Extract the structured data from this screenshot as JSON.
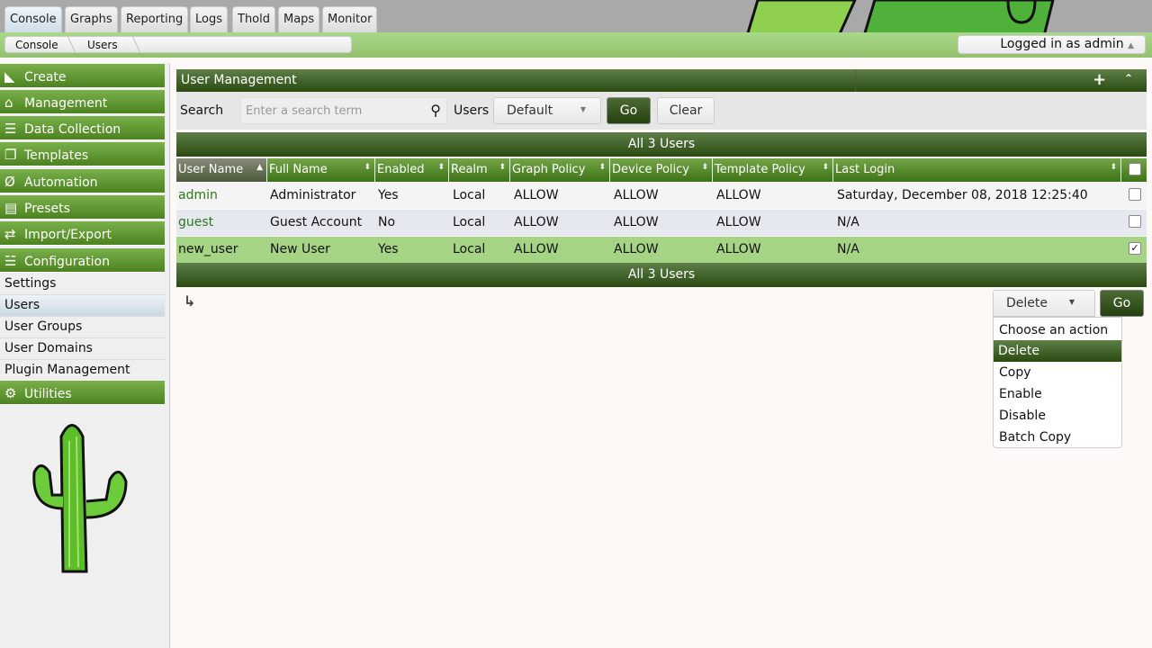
{
  "tabs": [
    "Console",
    "Graphs",
    "Reporting",
    "Logs",
    "Thold",
    "Maps",
    "Monitor"
  ],
  "breadcrumb": [
    "Console",
    "Users"
  ],
  "login_text": "Logged in as admin",
  "sidebar": {
    "menus": [
      {
        "label": "Create",
        "icon": "area-chart-icon"
      },
      {
        "label": "Management",
        "icon": "home-icon"
      },
      {
        "label": "Data Collection",
        "icon": "database-icon"
      },
      {
        "label": "Templates",
        "icon": "copy-icon"
      },
      {
        "label": "Automation",
        "icon": "automation-icon"
      },
      {
        "label": "Presets",
        "icon": "archive-icon"
      },
      {
        "label": "Import/Export",
        "icon": "exchange-icon"
      },
      {
        "label": "Configuration",
        "icon": "sliders-icon"
      }
    ],
    "config_items": [
      "Settings",
      "Users",
      "User Groups",
      "User Domains",
      "Plugin Management"
    ],
    "selected": "Users",
    "utilities": {
      "label": "Utilities",
      "icon": "cogs-icon"
    }
  },
  "panel": {
    "title": "User Management"
  },
  "filter": {
    "search_label": "Search",
    "search_placeholder": "Enter a search term",
    "users_label": "Users",
    "users_value": "Default",
    "go": "Go",
    "clear": "Clear"
  },
  "table": {
    "summary": "All 3 Users",
    "columns": [
      "User Name",
      "Full Name",
      "Enabled",
      "Realm",
      "Graph Policy",
      "Device Policy",
      "Template Policy",
      "Last Login"
    ],
    "rows": [
      {
        "user": "admin",
        "full": "Administrator",
        "enabled": "Yes",
        "realm": "Local",
        "graph": "ALLOW",
        "device": "ALLOW",
        "template": "ALLOW",
        "last": "Saturday, December 08, 2018 12:25:40",
        "checked": false
      },
      {
        "user": "guest",
        "full": "Guest Account",
        "enabled": "No",
        "realm": "Local",
        "graph": "ALLOW",
        "device": "ALLOW",
        "template": "ALLOW",
        "last": "N/A",
        "checked": false
      },
      {
        "user": "new_user",
        "full": "New User",
        "enabled": "Yes",
        "realm": "Local",
        "graph": "ALLOW",
        "device": "ALLOW",
        "template": "ALLOW",
        "last": "N/A",
        "checked": true
      }
    ]
  },
  "actions": {
    "selected": "Delete",
    "go": "Go",
    "options": [
      "Choose an action",
      "Delete",
      "Copy",
      "Enable",
      "Disable",
      "Batch Copy"
    ]
  },
  "colors": {
    "accent_dark": "#2a4a11",
    "accent_green": "#4c8320",
    "selected_row": "#a6d485",
    "link": "#2a7a1a"
  }
}
